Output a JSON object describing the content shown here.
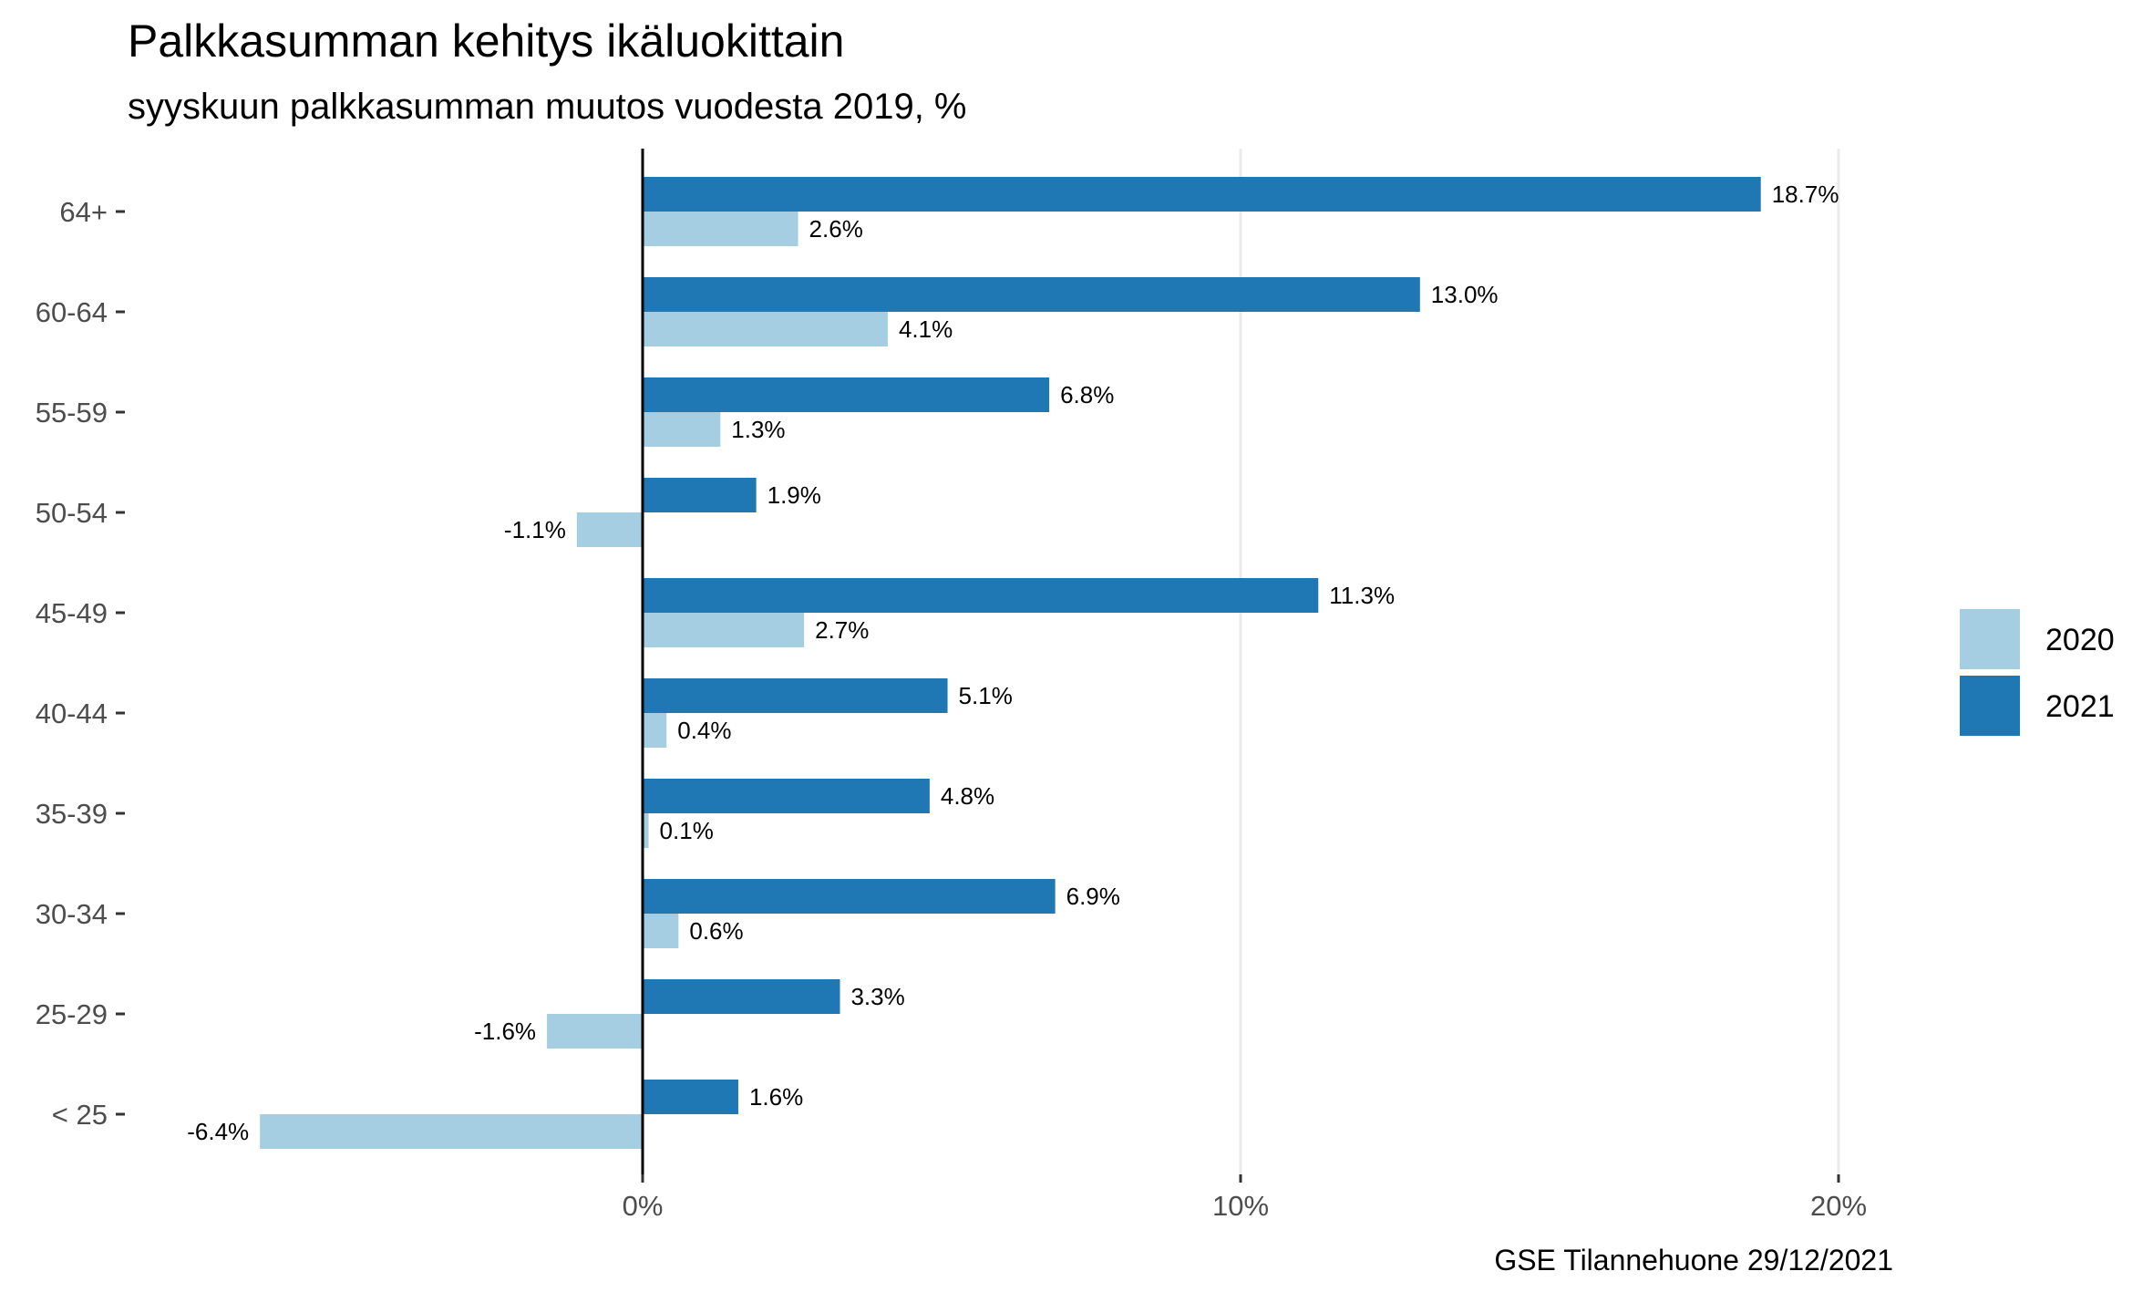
{
  "chart_data": {
    "type": "bar",
    "orientation": "horizontal",
    "title": "Palkkasumman kehitys ikäluokittain",
    "subtitle": "syyskuun palkkasumman muutos vuodesta 2019, %",
    "caption": "GSE Tilannehuone 29/12/2021",
    "xlabel": "",
    "ylabel": "",
    "categories": [
      "64+",
      "60-64",
      "55-59",
      "50-54",
      "45-49",
      "40-44",
      "35-39",
      "30-34",
      "25-29",
      "< 25"
    ],
    "series": [
      {
        "name": "2020",
        "color": "#a6cee3",
        "values": [
          2.6,
          4.1,
          1.3,
          -1.1,
          2.7,
          0.4,
          0.1,
          0.6,
          -1.6,
          -6.4
        ],
        "labels": [
          "2.6%",
          "4.1%",
          "1.3%",
          "-1.1%",
          "2.7%",
          "0.4%",
          "0.1%",
          "0.6%",
          "-1.6%",
          "-6.4%"
        ]
      },
      {
        "name": "2021",
        "color": "#1f78b4",
        "values": [
          18.7,
          13.0,
          6.8,
          1.9,
          11.3,
          5.1,
          4.8,
          6.9,
          3.3,
          1.6
        ],
        "labels": [
          "18.7%",
          "13.0%",
          "6.8%",
          "1.9%",
          "11.3%",
          "5.1%",
          "4.8%",
          "6.9%",
          "3.3%",
          "1.6%"
        ]
      }
    ],
    "xticks": [
      0,
      10,
      20
    ],
    "xtick_labels": [
      "0%",
      "10%",
      "20%"
    ],
    "xlim": [
      -6.4,
      22.5
    ],
    "grid": "vertical major",
    "legend_position": "right"
  }
}
